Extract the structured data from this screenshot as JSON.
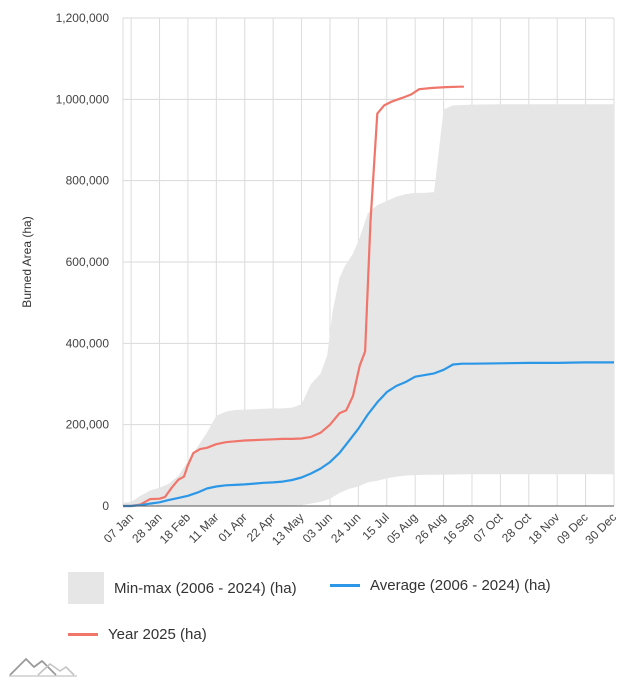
{
  "chart_data": {
    "type": "line",
    "title": "",
    "xlabel": "",
    "ylabel": "Burned Area (ha)",
    "ylim": [
      0,
      1200000
    ],
    "yticks": [
      "0",
      "200,000",
      "400,000",
      "600,000",
      "800,000",
      "1,000,000",
      "1,200,000"
    ],
    "ytick_values": [
      0,
      200000,
      400000,
      600000,
      800000,
      1000000,
      1200000
    ],
    "x_tick_labels": [
      "07 Jan",
      "28 Jan",
      "18 Feb",
      "11 Mar",
      "01 Apr",
      "22 Apr",
      "13 May",
      "03 Jun",
      "24 Jun",
      "15 Jul",
      "05 Aug",
      "26 Aug",
      "16 Sep",
      "07 Oct",
      "28 Oct",
      "18 Nov",
      "09 Dec",
      "30 Dec"
    ],
    "x_tick_days": [
      7,
      28,
      49,
      70,
      91,
      112,
      133,
      154,
      175,
      196,
      217,
      238,
      259,
      280,
      301,
      322,
      343,
      364
    ],
    "x_range_days": [
      1,
      364
    ],
    "grid": true,
    "series": [
      {
        "name": "Year 2025 (ha)",
        "color": "#f0756a",
        "points": [
          [
            1,
            0
          ],
          [
            7,
            0
          ],
          [
            14,
            4000
          ],
          [
            21,
            17000
          ],
          [
            28,
            18000
          ],
          [
            32,
            22000
          ],
          [
            37,
            45000
          ],
          [
            42,
            65000
          ],
          [
            46,
            72000
          ],
          [
            49,
            100000
          ],
          [
            53,
            130000
          ],
          [
            58,
            140000
          ],
          [
            63,
            143000
          ],
          [
            70,
            152000
          ],
          [
            77,
            157000
          ],
          [
            84,
            159000
          ],
          [
            91,
            161000
          ],
          [
            98,
            162000
          ],
          [
            105,
            163000
          ],
          [
            112,
            164000
          ],
          [
            119,
            165000
          ],
          [
            126,
            165000
          ],
          [
            133,
            166000
          ],
          [
            140,
            170000
          ],
          [
            147,
            180000
          ],
          [
            154,
            200000
          ],
          [
            161,
            228000
          ],
          [
            166,
            235000
          ],
          [
            171,
            270000
          ],
          [
            176,
            345000
          ],
          [
            180,
            380000
          ],
          [
            184,
            700000
          ],
          [
            189,
            965000
          ],
          [
            194,
            985000
          ],
          [
            200,
            995000
          ],
          [
            207,
            1003000
          ],
          [
            214,
            1012000
          ],
          [
            220,
            1025000
          ],
          [
            230,
            1028000
          ],
          [
            240,
            1030000
          ],
          [
            250,
            1031000
          ],
          [
            253,
            1031000
          ]
        ]
      },
      {
        "name": "Average (2006 - 2024) (ha)",
        "color": "#2b97e6",
        "points": [
          [
            1,
            0
          ],
          [
            7,
            0
          ],
          [
            14,
            2000
          ],
          [
            21,
            6000
          ],
          [
            28,
            9000
          ],
          [
            35,
            15000
          ],
          [
            42,
            20000
          ],
          [
            49,
            25000
          ],
          [
            56,
            33000
          ],
          [
            63,
            43000
          ],
          [
            70,
            48000
          ],
          [
            77,
            51000
          ],
          [
            84,
            52000
          ],
          [
            91,
            53000
          ],
          [
            98,
            55000
          ],
          [
            105,
            57000
          ],
          [
            112,
            58000
          ],
          [
            119,
            60000
          ],
          [
            126,
            64000
          ],
          [
            133,
            70000
          ],
          [
            140,
            80000
          ],
          [
            147,
            92000
          ],
          [
            154,
            108000
          ],
          [
            161,
            130000
          ],
          [
            168,
            160000
          ],
          [
            175,
            190000
          ],
          [
            182,
            225000
          ],
          [
            189,
            255000
          ],
          [
            196,
            280000
          ],
          [
            203,
            295000
          ],
          [
            210,
            305000
          ],
          [
            217,
            318000
          ],
          [
            224,
            322000
          ],
          [
            231,
            326000
          ],
          [
            238,
            335000
          ],
          [
            245,
            348000
          ],
          [
            252,
            350000
          ],
          [
            259,
            350000
          ],
          [
            280,
            351000
          ],
          [
            301,
            352000
          ],
          [
            322,
            352000
          ],
          [
            343,
            353000
          ],
          [
            364,
            353000
          ]
        ]
      },
      {
        "name": "Min-max (2006 - 2024) (ha)",
        "color": "#e6e6e6",
        "upper": [
          [
            1,
            8000
          ],
          [
            7,
            10000
          ],
          [
            14,
            25000
          ],
          [
            21,
            38000
          ],
          [
            28,
            45000
          ],
          [
            35,
            55000
          ],
          [
            42,
            75000
          ],
          [
            49,
            110000
          ],
          [
            56,
            145000
          ],
          [
            63,
            180000
          ],
          [
            70,
            222000
          ],
          [
            77,
            232000
          ],
          [
            84,
            236000
          ],
          [
            91,
            237000
          ],
          [
            98,
            238000
          ],
          [
            105,
            239000
          ],
          [
            112,
            240000
          ],
          [
            119,
            240000
          ],
          [
            126,
            242000
          ],
          [
            133,
            250000
          ],
          [
            140,
            300000
          ],
          [
            147,
            325000
          ],
          [
            152,
            370000
          ],
          [
            156,
            480000
          ],
          [
            161,
            560000
          ],
          [
            165,
            590000
          ],
          [
            171,
            620000
          ],
          [
            176,
            660000
          ],
          [
            182,
            720000
          ],
          [
            189,
            740000
          ],
          [
            196,
            750000
          ],
          [
            203,
            760000
          ],
          [
            210,
            767000
          ],
          [
            217,
            770000
          ],
          [
            224,
            770000
          ],
          [
            231,
            772000
          ],
          [
            238,
            975000
          ],
          [
            245,
            985000
          ],
          [
            252,
            986000
          ],
          [
            259,
            987000
          ],
          [
            280,
            988000
          ],
          [
            301,
            988000
          ],
          [
            322,
            988000
          ],
          [
            343,
            988000
          ],
          [
            364,
            988000
          ]
        ],
        "lower": [
          [
            1,
            0
          ],
          [
            28,
            0
          ],
          [
            49,
            0
          ],
          [
            70,
            0
          ],
          [
            91,
            0
          ],
          [
            112,
            1000
          ],
          [
            133,
            2000
          ],
          [
            140,
            6000
          ],
          [
            147,
            10000
          ],
          [
            154,
            18000
          ],
          [
            161,
            32000
          ],
          [
            168,
            42000
          ],
          [
            175,
            48000
          ],
          [
            182,
            58000
          ],
          [
            189,
            62000
          ],
          [
            196,
            68000
          ],
          [
            203,
            72000
          ],
          [
            210,
            75000
          ],
          [
            217,
            76000
          ],
          [
            224,
            77000
          ],
          [
            231,
            77000
          ],
          [
            259,
            78000
          ],
          [
            301,
            78000
          ],
          [
            343,
            78000
          ],
          [
            364,
            78000
          ]
        ]
      }
    ]
  },
  "legend": {
    "minmax_label": "Min-max (2006 - 2024) (ha)",
    "average_label": "Average (2006 - 2024) (ha)",
    "year_label": "Year 2025 (ha)"
  }
}
